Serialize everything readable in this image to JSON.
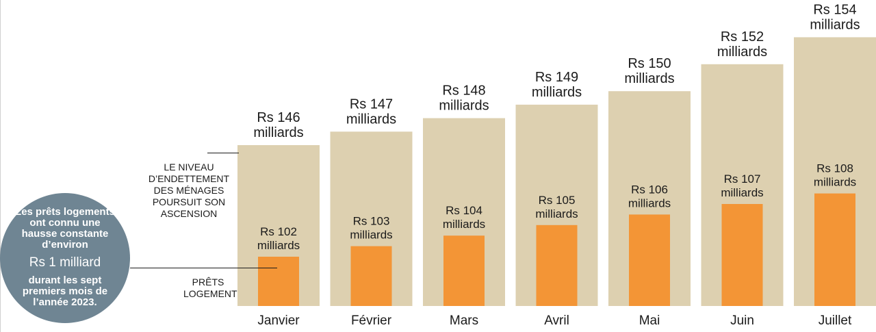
{
  "chart_data": {
    "type": "bar",
    "categories": [
      "Janvier",
      "Février",
      "Mars",
      "Avril",
      "Mai",
      "Juin",
      "Juillet"
    ],
    "series": [
      {
        "name": "LE NIVEAU D'ENDETTEMENT DES MÉNAGES POURSUIT SON ASCENSION",
        "values": [
          146,
          147,
          148,
          149,
          150,
          152,
          154
        ],
        "labels": [
          "Rs 146",
          "Rs 147",
          "Rs 148",
          "Rs 149",
          "Rs 150",
          "Rs 152",
          "Rs 154"
        ],
        "color": "#ddd0b0"
      },
      {
        "name": "PRÊTS LOGEMENT",
        "values": [
          102,
          103,
          104,
          105,
          106,
          107,
          108
        ],
        "labels": [
          "Rs 102",
          "Rs 103",
          "Rs 104",
          "Rs 105",
          "Rs 106",
          "Rs 107",
          "Rs 108"
        ],
        "color": "#f39536"
      }
    ],
    "unit_label": "milliards",
    "title": "",
    "xlabel": "",
    "ylabel": "",
    "grid": false
  },
  "annotations": {
    "total_label": "LE NIVEAU D’ENDETTEMENT DES MÉNAGES POURSUIT SON ASCENSION",
    "housing_label": "PRÊTS LOGEMENT"
  },
  "callout": {
    "line1": "Les prêts logements ont connu une hausse constante d’environ",
    "highlight": "Rs 1 milliard",
    "line2": "durant les sept premiers mois de l’année 2023."
  },
  "colors": {
    "total_bar": "#ddd0b0",
    "housing_bar": "#f39536",
    "callout_bg": "#6f8593"
  }
}
